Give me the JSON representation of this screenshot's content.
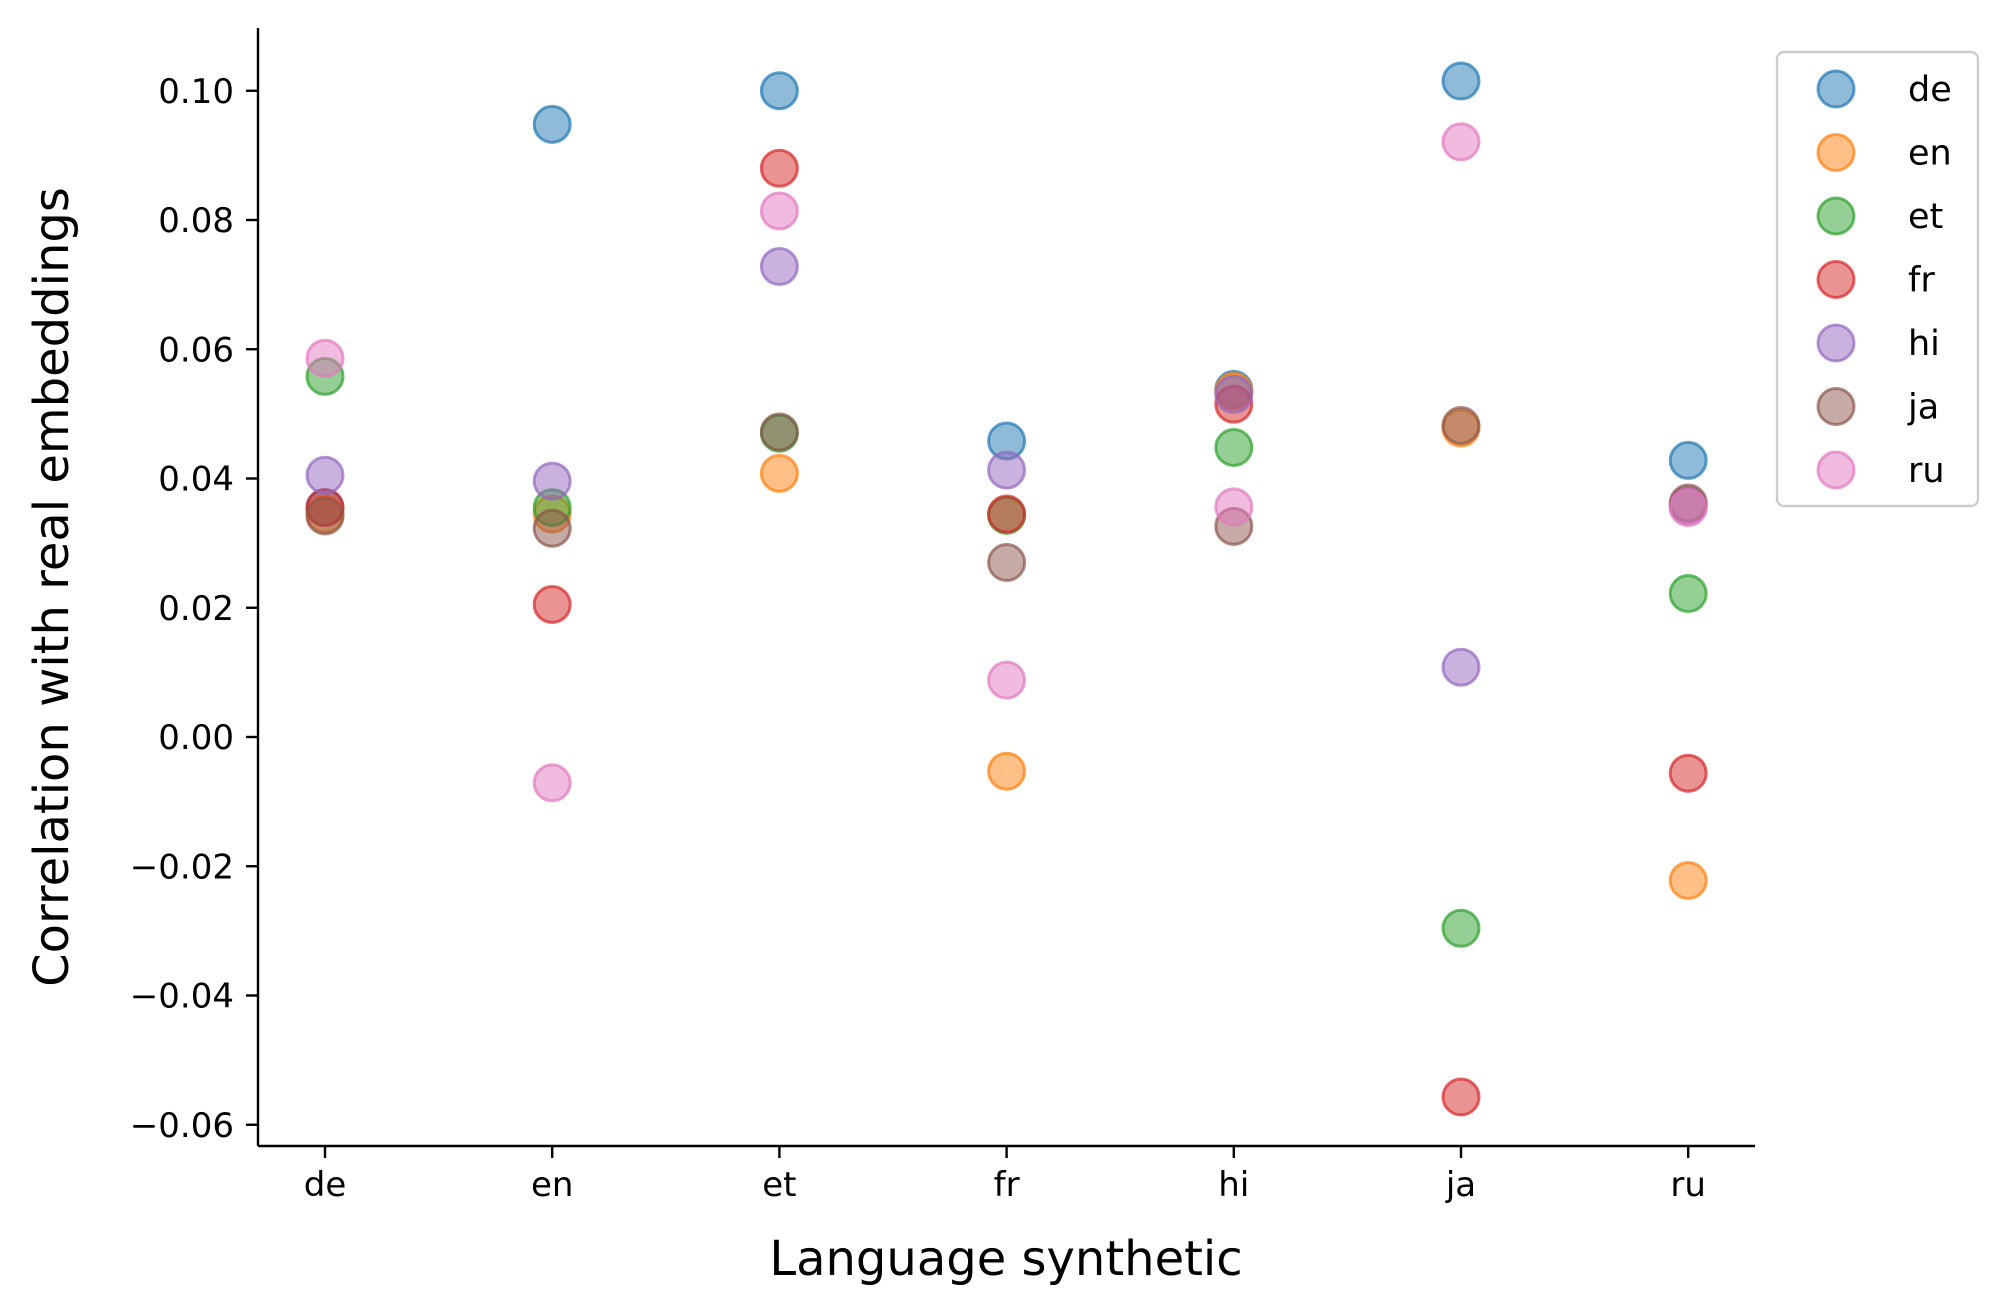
{
  "chart_data": {
    "type": "scatter",
    "title": "",
    "xlabel": "Language synthetic",
    "ylabel": "Correlation with real embeddings",
    "categories": [
      "de",
      "en",
      "et",
      "fr",
      "hi",
      "ja",
      "ru"
    ],
    "ylim": [
      -0.063,
      0.11
    ],
    "yticks": [
      -0.06,
      -0.04,
      -0.02,
      0.0,
      0.02,
      0.04,
      0.06,
      0.08,
      0.1
    ],
    "ytick_labels": [
      "−0.06",
      "−0.04",
      "−0.02",
      "0.00",
      "0.02",
      "0.04",
      "0.06",
      "0.08",
      "0.10"
    ],
    "grid": false,
    "legend_position": "top-right outside",
    "series": [
      {
        "name": "de",
        "color": "#1f77b4",
        "values": [
          0.0355,
          0.0948,
          0.1,
          0.0458,
          0.0538,
          0.1015,
          0.0428
        ]
      },
      {
        "name": "en",
        "color": "#ff7f0e",
        "values": [
          0.0345,
          0.0345,
          0.0408,
          -0.0053,
          0.0535,
          0.0478,
          -0.0222
        ]
      },
      {
        "name": "et",
        "color": "#2ca02c",
        "values": [
          0.0558,
          0.0355,
          0.047,
          0.0343,
          0.0448,
          -0.0296,
          0.0222
        ]
      },
      {
        "name": "fr",
        "color": "#d62728",
        "values": [
          0.0355,
          0.0205,
          0.088,
          0.0345,
          0.0515,
          -0.0557,
          -0.0056
        ]
      },
      {
        "name": "hi",
        "color": "#9467bd",
        "values": [
          0.0405,
          0.0396,
          0.0728,
          0.0413,
          0.053,
          0.0108,
          0.0358
        ]
      },
      {
        "name": "ja",
        "color": "#8c564b",
        "values": [
          0.0342,
          0.0323,
          0.0472,
          0.027,
          0.0326,
          0.0482,
          0.0362
        ]
      },
      {
        "name": "ru",
        "color": "#e377c2",
        "values": [
          0.0586,
          -0.0071,
          0.0814,
          0.0088,
          0.0356,
          0.0921,
          0.0355
        ]
      }
    ]
  }
}
